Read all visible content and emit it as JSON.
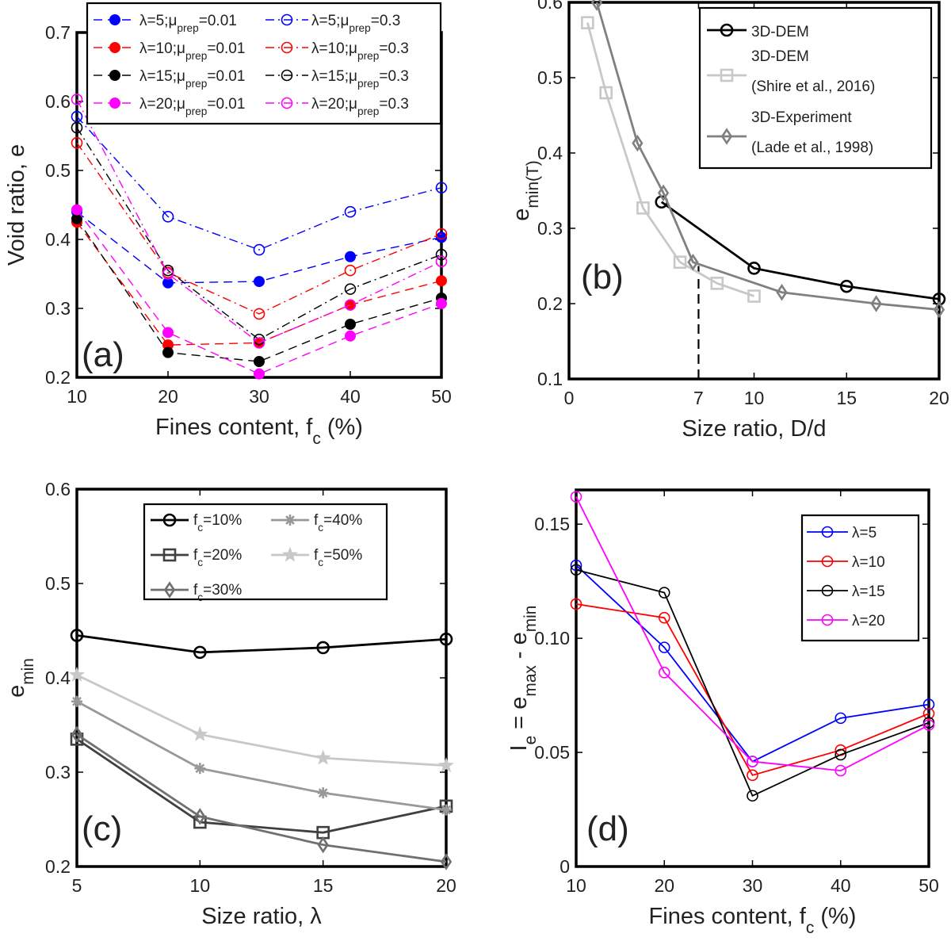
{
  "chart_data": [
    {
      "id": "a",
      "type": "line",
      "panel_label": "(a)",
      "xlabel": "Fines content, f",
      "xlabel_sub": "c",
      "xlabel_suffix": " (%)",
      "ylabel": "Void ratio, e",
      "xlim": [
        10,
        50
      ],
      "ylim": [
        0.2,
        0.7
      ],
      "xticks": [
        10,
        20,
        30,
        40,
        50
      ],
      "yticks": [
        0.2,
        0.3,
        0.4,
        0.5,
        0.6,
        0.7
      ],
      "legend": "top-inside, 2 columns",
      "x": [
        10,
        20,
        30,
        40,
        50
      ],
      "series": [
        {
          "name": "λ=5;μ_prep=0.01",
          "lambda": "λ=5",
          "mu": "0.01",
          "color": "#0000ff",
          "marker": "filled-circle",
          "dash": "dashed",
          "values": [
            0.44,
            0.337,
            0.339,
            0.375,
            0.403
          ]
        },
        {
          "name": "λ=10;μ_prep=0.01",
          "lambda": "λ=10",
          "mu": "0.01",
          "color": "#ff0000",
          "marker": "filled-circle",
          "dash": "dashed",
          "values": [
            0.425,
            0.247,
            0.25,
            0.305,
            0.34
          ]
        },
        {
          "name": "λ=15;μ_prep=0.01",
          "lambda": "λ=15",
          "mu": "0.01",
          "color": "#000000",
          "marker": "filled-circle",
          "dash": "dashed",
          "values": [
            0.43,
            0.236,
            0.223,
            0.277,
            0.315
          ]
        },
        {
          "name": "λ=20;μ_prep=0.01",
          "lambda": "λ=20",
          "mu": "0.01",
          "color": "#ff00ff",
          "marker": "filled-circle",
          "dash": "dashed",
          "values": [
            0.443,
            0.265,
            0.205,
            0.26,
            0.307
          ]
        },
        {
          "name": "λ=5;μ_prep=0.3",
          "lambda": "λ=5",
          "mu": "0.3",
          "color": "#0000ff",
          "marker": "open-circle",
          "dash": "dashdot",
          "values": [
            0.578,
            0.433,
            0.385,
            0.44,
            0.475
          ]
        },
        {
          "name": "λ=10;μ_prep=0.3",
          "lambda": "λ=10",
          "mu": "0.3",
          "color": "#ff0000",
          "marker": "open-circle",
          "dash": "dashdot",
          "values": [
            0.54,
            0.352,
            0.292,
            0.355,
            0.408
          ]
        },
        {
          "name": "λ=15;μ_prep=0.3",
          "lambda": "λ=15",
          "mu": "0.3",
          "color": "#000000",
          "marker": "open-circle",
          "dash": "dashdot",
          "values": [
            0.562,
            0.355,
            0.255,
            0.328,
            0.378
          ]
        },
        {
          "name": "λ=20;μ_prep=0.3",
          "lambda": "λ=20",
          "mu": "0.3",
          "color": "#ff00ff",
          "marker": "open-circle",
          "dash": "dashdot",
          "values": [
            0.603,
            0.35,
            0.25,
            0.305,
            0.368
          ]
        }
      ]
    },
    {
      "id": "b",
      "type": "line",
      "panel_label": "(b)",
      "xlabel": "Size ratio, D/d",
      "ylabel": "e",
      "ylabel_sub": "min(T)",
      "xlim": [
        0,
        20
      ],
      "ylim": [
        0.1,
        0.6
      ],
      "xticks": [
        0,
        7,
        10,
        15,
        20
      ],
      "yticks": [
        0.1,
        0.2,
        0.3,
        0.4,
        0.5,
        0.6
      ],
      "legend": "top-right",
      "annotation": {
        "type": "vertical-dashed-line",
        "x": 7,
        "y_from": 0.1,
        "y_to": 0.25
      },
      "series": [
        {
          "name": "3D-DEM",
          "name2": "",
          "color": "#000000",
          "marker": "circle",
          "x": [
            5,
            10,
            15,
            20
          ],
          "values": [
            0.335,
            0.247,
            0.223,
            0.206
          ]
        },
        {
          "name": "3D-DEM",
          "name2": "(Shire et al., 2016)",
          "color": "#c8c8c8",
          "marker": "square",
          "x": [
            1,
            2,
            4,
            6,
            8,
            10
          ],
          "values": [
            0.573,
            0.48,
            0.327,
            0.255,
            0.227,
            0.21
          ]
        },
        {
          "name": "3D-Experiment",
          "name2": "(Lade et al., 1998)",
          "color": "#808080",
          "marker": "diamond",
          "x": [
            1.5,
            3.7,
            5.1,
            6.7,
            11.5,
            16.6,
            20
          ],
          "values": [
            0.6,
            0.413,
            0.347,
            0.255,
            0.215,
            0.2,
            0.192
          ]
        }
      ]
    },
    {
      "id": "c",
      "type": "line",
      "panel_label": "(c)",
      "xlabel": "Size ratio, λ",
      "ylabel": "e",
      "ylabel_sub": "min",
      "xlim": [
        5,
        20
      ],
      "ylim": [
        0.2,
        0.6
      ],
      "xticks": [
        5,
        10,
        15,
        20
      ],
      "yticks": [
        0.2,
        0.3,
        0.4,
        0.5,
        0.6
      ],
      "legend": "top-right, 2 columns",
      "x": [
        5,
        10,
        15,
        20
      ],
      "series": [
        {
          "name": "f_c=10%",
          "label": "=10%",
          "color": "#000000",
          "marker": "circle",
          "values": [
            0.445,
            0.427,
            0.432,
            0.441
          ]
        },
        {
          "name": "f_c=20%",
          "label": "=20%",
          "color": "#404040",
          "marker": "square",
          "values": [
            0.335,
            0.247,
            0.236,
            0.264
          ]
        },
        {
          "name": "f_c=30%",
          "label": "=30%",
          "color": "#707070",
          "marker": "diamond",
          "values": [
            0.34,
            0.253,
            0.223,
            0.205
          ]
        },
        {
          "name": "f_c=40%",
          "label": "=40%",
          "color": "#999999",
          "marker": "asterisk",
          "values": [
            0.375,
            0.304,
            0.278,
            0.26
          ]
        },
        {
          "name": "f_c=50%",
          "label": "=50%",
          "color": "#c8c8c8",
          "marker": "star",
          "values": [
            0.403,
            0.34,
            0.315,
            0.307
          ]
        }
      ]
    },
    {
      "id": "d",
      "type": "line",
      "panel_label": "(d)",
      "xlabel": "Fines content, f",
      "xlabel_sub": "c",
      "xlabel_suffix": " (%)",
      "ylabel": "I",
      "ylabel_sub": "e",
      "ylabel_mid": " = e",
      "ylabel_sub2": "max",
      "ylabel_mid2": " - e",
      "ylabel_sub3": "min",
      "xlim": [
        10,
        50
      ],
      "ylim": [
        0,
        0.165
      ],
      "xticks": [
        10,
        20,
        30,
        40,
        50
      ],
      "yticks": [
        0,
        0.05,
        0.1,
        0.15
      ],
      "legend": "top-right",
      "x": [
        10,
        20,
        30,
        40,
        50
      ],
      "series": [
        {
          "name": "λ=5",
          "color": "#0000ff",
          "marker": "open-circle",
          "values": [
            0.132,
            0.096,
            0.046,
            0.065,
            0.071
          ]
        },
        {
          "name": "λ=10",
          "color": "#ff0000",
          "marker": "open-circle",
          "values": [
            0.115,
            0.109,
            0.04,
            0.051,
            0.067
          ]
        },
        {
          "name": "λ=15",
          "color": "#000000",
          "marker": "open-circle",
          "values": [
            0.13,
            0.12,
            0.031,
            0.049,
            0.063
          ]
        },
        {
          "name": "λ=20",
          "color": "#ff00ff",
          "marker": "open-circle",
          "values": [
            0.162,
            0.085,
            0.046,
            0.042,
            0.062
          ]
        }
      ]
    }
  ]
}
